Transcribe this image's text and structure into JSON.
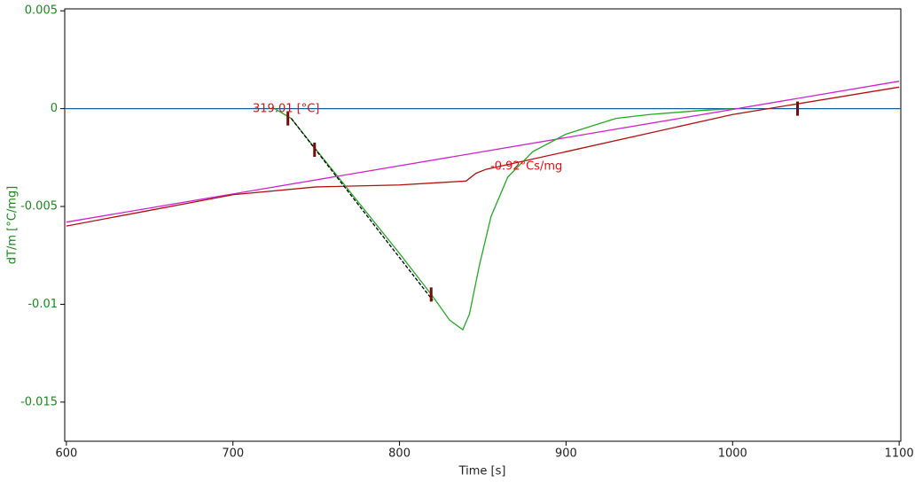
{
  "chart_data": {
    "type": "line",
    "x_label": "Time [s]",
    "y_label": "dT/m  [°C/mg]",
    "xlim": [
      599,
      1101
    ],
    "ylim": [
      -0.017,
      0.0051
    ],
    "xticks": [
      600,
      700,
      800,
      900,
      1000,
      1100
    ],
    "yticks": [
      0.005,
      0,
      -0.005,
      -0.01,
      -0.015
    ],
    "series": [
      {
        "color": "#1060a0",
        "x": [
          599,
          1101
        ],
        "values": [
          0,
          0
        ]
      },
      {
        "color": "#d020d0",
        "x": [
          600,
          1100
        ],
        "values": [
          -0.0058,
          0.0014
        ]
      },
      {
        "color": "#b01010",
        "x": [
          600,
          650,
          700,
          750,
          800,
          840,
          846,
          852,
          900,
          1000,
          1100
        ],
        "values": [
          -0.006,
          -0.0052,
          -0.0044,
          -0.004,
          -0.0039,
          -0.0037,
          -0.0033,
          -0.0031,
          -0.0022,
          -0.0003,
          0.0011
        ]
      },
      {
        "color": "#22aa22",
        "x": [
          725,
          735,
          750,
          800,
          820,
          830,
          838,
          842,
          848,
          855,
          865,
          880,
          900,
          930,
          950,
          980,
          1000
        ],
        "values": [
          0,
          -0.0005,
          -0.0021,
          -0.0074,
          -0.0096,
          -0.0108,
          -0.0113,
          -0.0105,
          -0.008,
          -0.0055,
          -0.0035,
          -0.0022,
          -0.0013,
          -0.0005,
          -0.0003,
          -0.0001,
          0
        ]
      },
      {
        "color": "#000000",
        "dashed": true,
        "x": [
          735,
          820
        ],
        "values": [
          -0.0005,
          -0.0098
        ]
      }
    ],
    "markers": {
      "color": "#7a0a0a",
      "x": [
        733,
        749,
        819,
        1039
      ],
      "values": [
        -0.0005,
        -0.0021,
        -0.0095,
        0
      ]
    },
    "annotations": [
      "319.01 [°C]",
      "-0.92°Cs/mg"
    ]
  }
}
